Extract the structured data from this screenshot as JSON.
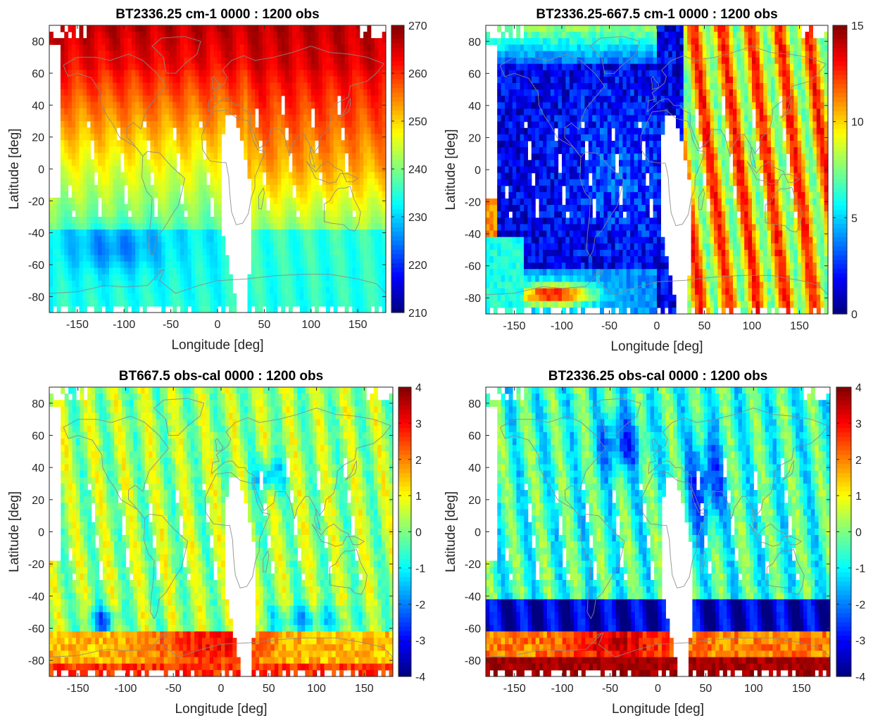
{
  "chart_data": [
    {
      "type": "heatmap",
      "title": "BT2336.25 cm-1 0000 : 1200 obs",
      "xlabel": "Longitude [deg]",
      "ylabel": "Latitude [deg]",
      "xlim": [
        -180,
        180
      ],
      "ylim": [
        -90,
        90
      ],
      "xticks": [
        "-150",
        "-100",
        "-50",
        "0",
        "50",
        "100",
        "150"
      ],
      "yticks": [
        "80",
        "60",
        "40",
        "20",
        "0",
        "-20",
        "-40",
        "-60",
        "-80"
      ],
      "colorbar": {
        "min": 210,
        "max": 270,
        "ticks": [
          "270",
          "260",
          "250",
          "240",
          "230",
          "220",
          "210"
        ]
      },
      "colormap": "jet",
      "field": "bt2336"
    },
    {
      "type": "heatmap",
      "title": "BT2336.25-667.5 cm-1 0000 : 1200 obs",
      "xlabel": "Longitude [deg]",
      "ylabel": "Latitude [deg]",
      "xlim": [
        -180,
        180
      ],
      "ylim": [
        -90,
        90
      ],
      "xticks": [
        "-150",
        "-100",
        "-50",
        "0",
        "50",
        "100",
        "150"
      ],
      "yticks": [
        "80",
        "60",
        "40",
        "20",
        "0",
        "-20",
        "-40",
        "-60",
        "-80"
      ],
      "colorbar": {
        "min": 0,
        "max": 15,
        "ticks": [
          "15",
          "10",
          "5",
          "0"
        ]
      },
      "colormap": "jet",
      "field": "diff"
    },
    {
      "type": "heatmap",
      "title": "BT667.5 obs-cal 0000 : 1200 obs",
      "xlabel": "Longitude [deg]",
      "ylabel": "Latitude [deg]",
      "xlim": [
        -180,
        180
      ],
      "ylim": [
        -90,
        90
      ],
      "xticks": [
        "-150",
        "-100",
        "-50",
        "0",
        "50",
        "100",
        "150"
      ],
      "yticks": [
        "80",
        "60",
        "40",
        "20",
        "0",
        "-20",
        "-40",
        "-60",
        "-80"
      ],
      "colorbar": {
        "min": -4,
        "max": 4,
        "ticks": [
          "4",
          "3",
          "2",
          "1",
          "0",
          "-1",
          "-2",
          "-3",
          "-4"
        ]
      },
      "colormap": "jet",
      "field": "oc667"
    },
    {
      "type": "heatmap",
      "title": "BT2336.25 obs-cal 0000 : 1200 obs",
      "xlabel": "Longitude [deg]",
      "ylabel": "Latitude [deg]",
      "xlim": [
        -180,
        180
      ],
      "ylim": [
        -90,
        90
      ],
      "xticks": [
        "-150",
        "-100",
        "-50",
        "0",
        "50",
        "100",
        "150"
      ],
      "yticks": [
        "80",
        "60",
        "40",
        "20",
        "0",
        "-20",
        "-40",
        "-60",
        "-80"
      ],
      "colorbar": {
        "min": -4,
        "max": 4,
        "ticks": [
          "4",
          "3",
          "2",
          "1",
          "0",
          "-1",
          "-2",
          "-3",
          "-4"
        ]
      },
      "colormap": "jet",
      "field": "oc2336"
    }
  ]
}
